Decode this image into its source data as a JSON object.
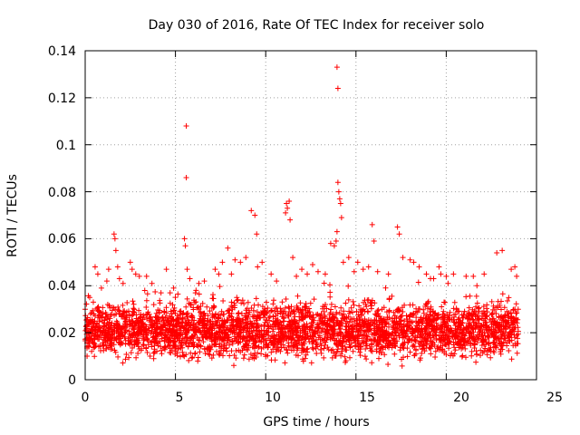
{
  "colors": {
    "series": "#ff0000",
    "axis": "#000000",
    "grid": "#a0a0a0",
    "background": "#ffffff"
  },
  "chart_data": {
    "type": "scatter",
    "title": "Day 030 of 2016, Rate Of TEC Index for receiver solo",
    "xlabel": "GPS time / hours",
    "ylabel": "ROTI / TECUs",
    "xlim": [
      0,
      25
    ],
    "ylim": [
      0,
      0.14
    ],
    "xticks": [
      0,
      5,
      10,
      15,
      20,
      25
    ],
    "xtick_labels": [
      "0",
      "5",
      "10",
      "15",
      "20",
      "25"
    ],
    "yticks": [
      0,
      0.02,
      0.04,
      0.06,
      0.08,
      0.1,
      0.12,
      0.14
    ],
    "ytick_labels": [
      "0",
      "0.02",
      "0.04",
      "0.06",
      "0.08",
      "0.1",
      "0.12",
      "0.14"
    ],
    "grid": true,
    "marker": "+",
    "series": [
      {
        "name": "ROTI",
        "dense_band": {
          "x_range": [
            0,
            24
          ],
          "y_min": 0.005,
          "y_max": 0.035,
          "bulk_center": 0.017,
          "approx_points": 6000
        },
        "x": [
          0.0,
          0.25,
          0.3,
          0.45,
          0.55,
          0.7,
          0.9,
          1.2,
          1.3,
          1.6,
          1.65,
          1.7,
          1.8,
          1.9,
          2.1,
          2.5,
          2.6,
          2.8,
          3.0,
          3.3,
          3.4,
          3.7,
          4.2,
          4.5,
          4.9,
          5.5,
          5.55,
          5.6,
          5.6,
          5.65,
          5.8,
          6.3,
          6.6,
          7.2,
          7.4,
          7.6,
          7.9,
          8.1,
          8.3,
          8.6,
          8.9,
          9.2,
          9.4,
          9.5,
          9.55,
          9.8,
          10.3,
          10.6,
          11.1,
          11.15,
          11.2,
          11.3,
          11.35,
          11.5,
          11.7,
          12.0,
          12.3,
          12.6,
          12.9,
          13.3,
          13.6,
          13.8,
          13.9,
          13.95,
          14.0,
          14.05,
          14.1,
          14.15,
          14.2,
          13.95,
          14.0,
          14.3,
          14.6,
          14.9,
          15.1,
          15.4,
          15.7,
          15.9,
          16.0,
          16.2,
          16.8,
          17.3,
          17.4,
          17.6,
          18.0,
          18.2,
          18.5,
          18.9,
          19.3,
          19.6,
          19.7,
          20.0,
          20.1,
          20.4,
          21.1,
          21.5,
          21.7,
          22.1,
          22.8,
          23.1,
          23.6,
          23.8,
          23.9
        ],
        "y": [
          0.03,
          0.035,
          0.028,
          0.033,
          0.048,
          0.045,
          0.039,
          0.042,
          0.047,
          0.062,
          0.06,
          0.055,
          0.048,
          0.043,
          0.041,
          0.05,
          0.047,
          0.045,
          0.044,
          0.038,
          0.044,
          0.041,
          0.037,
          0.047,
          0.039,
          0.06,
          0.057,
          0.108,
          0.086,
          0.047,
          0.043,
          0.041,
          0.042,
          0.047,
          0.045,
          0.05,
          0.056,
          0.045,
          0.051,
          0.05,
          0.052,
          0.072,
          0.07,
          0.062,
          0.048,
          0.05,
          0.045,
          0.042,
          0.071,
          0.075,
          0.073,
          0.076,
          0.068,
          0.052,
          0.044,
          0.047,
          0.045,
          0.049,
          0.046,
          0.045,
          0.058,
          0.057,
          0.059,
          0.063,
          0.084,
          0.08,
          0.077,
          0.075,
          0.069,
          0.133,
          0.124,
          0.05,
          0.052,
          0.046,
          0.05,
          0.047,
          0.048,
          0.066,
          0.059,
          0.046,
          0.045,
          0.065,
          0.062,
          0.052,
          0.051,
          0.05,
          0.048,
          0.045,
          0.043,
          0.048,
          0.045,
          0.044,
          0.041,
          0.045,
          0.044,
          0.044,
          0.04,
          0.045,
          0.054,
          0.055,
          0.047,
          0.048,
          0.044
        ]
      }
    ]
  }
}
